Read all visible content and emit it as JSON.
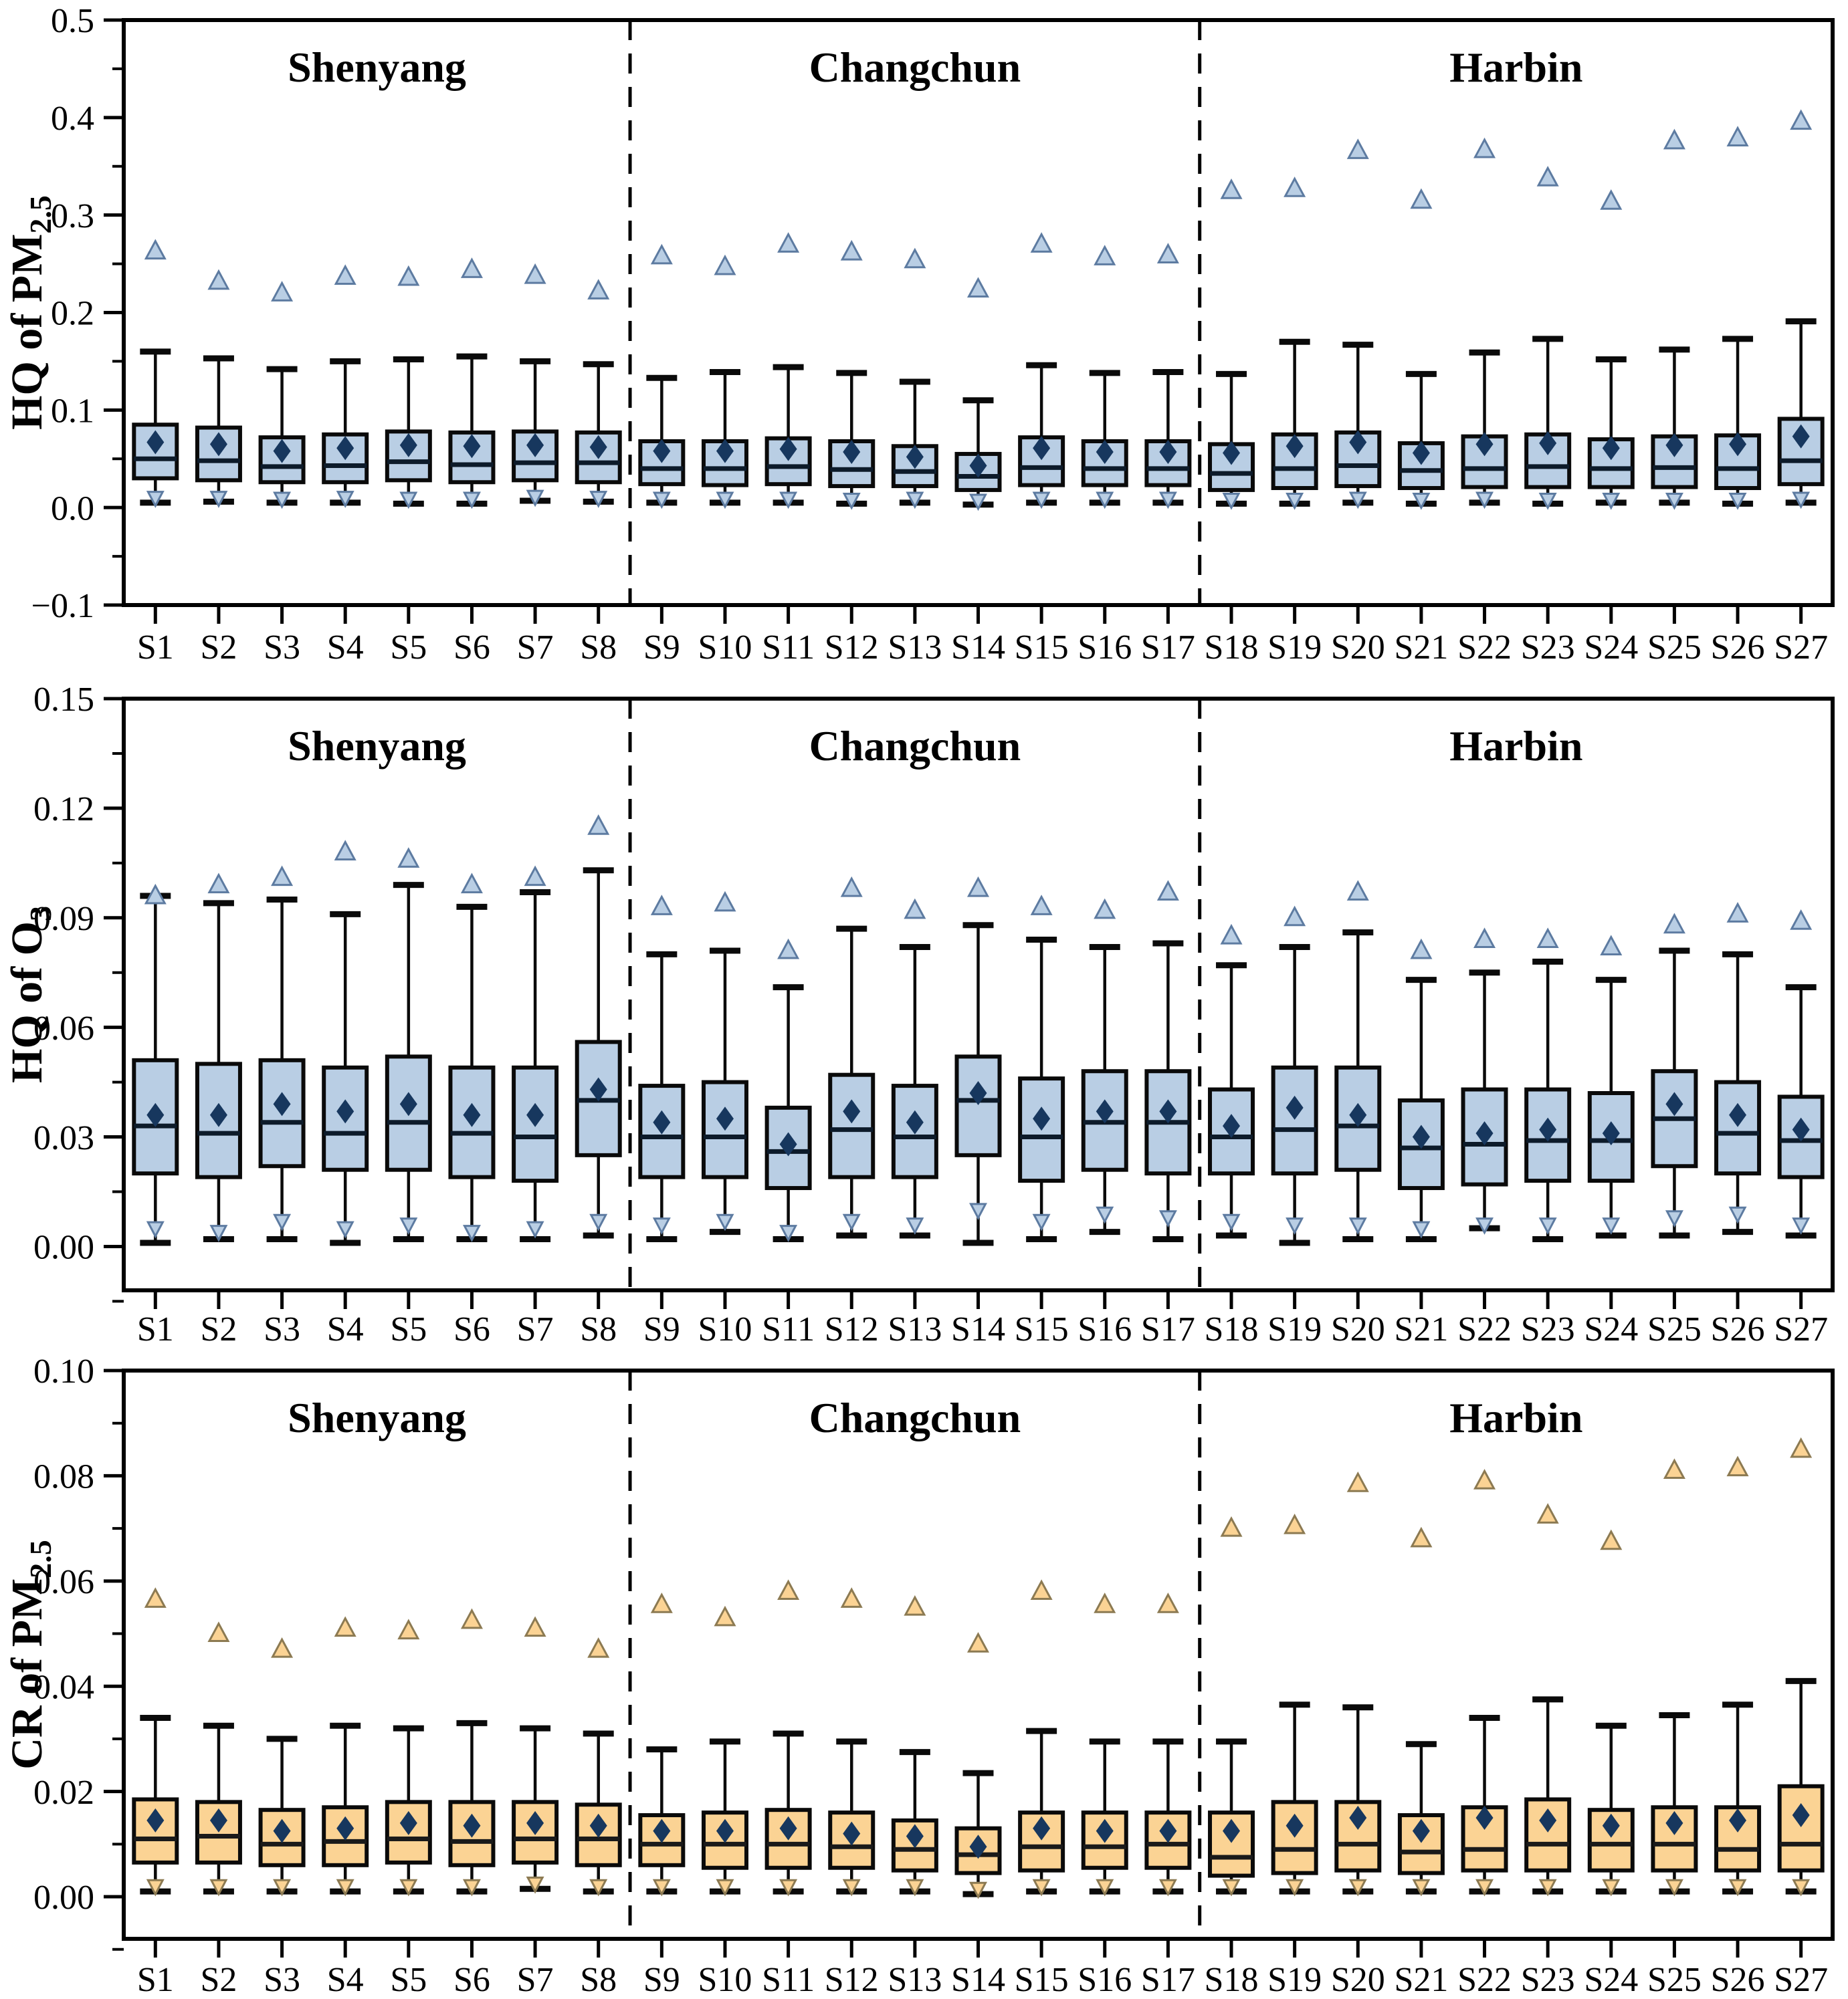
{
  "figure": {
    "background": "#ffffff",
    "site_count": 27,
    "cities": [
      "Shenyang",
      "Changchun",
      "Harbin"
    ]
  },
  "chart_data": [
    {
      "type": "box",
      "title": "",
      "ylabel_parts": [
        {
          "text": "HQ of PM",
          "sub": false
        },
        {
          "text": "2.5",
          "sub": true
        }
      ],
      "categories": [
        "S1",
        "S2",
        "S3",
        "S4",
        "S5",
        "S6",
        "S7",
        "S8",
        "S9",
        "S10",
        "S11",
        "S12",
        "S13",
        "S14",
        "S15",
        "S16",
        "S17",
        "S18",
        "S19",
        "S20",
        "S21",
        "S22",
        "S23",
        "S24",
        "S25",
        "S26",
        "S27"
      ],
      "regions": [
        {
          "label": "Shenyang",
          "span": [
            0,
            7
          ]
        },
        {
          "label": "Changchun",
          "span": [
            8,
            16
          ]
        },
        {
          "label": "Harbin",
          "span": [
            17,
            26
          ]
        }
      ],
      "separators_after_index": [
        7,
        16
      ],
      "ylim": [
        -0.1,
        0.5
      ],
      "yticks": [
        {
          "v": 0.5,
          "label": "0.5"
        },
        {
          "v": 0.4,
          "label": "0.4"
        },
        {
          "v": 0.3,
          "label": "0.3"
        },
        {
          "v": 0.2,
          "label": "0.2"
        },
        {
          "v": 0.1,
          "label": "0.1"
        },
        {
          "v": 0.0,
          "label": "0.0"
        },
        {
          "v": -0.1,
          "label": "−0.1"
        }
      ],
      "minor_step": 0.05,
      "grid": false,
      "legend": "none",
      "stats": {
        "whisker_low": [
          0.005,
          0.006,
          0.005,
          0.005,
          0.004,
          0.004,
          0.007,
          0.006,
          0.005,
          0.005,
          0.005,
          0.004,
          0.005,
          0.003,
          0.005,
          0.005,
          0.005,
          0.004,
          0.004,
          0.005,
          0.004,
          0.005,
          0.004,
          0.005,
          0.005,
          0.004,
          0.005
        ],
        "q1": [
          0.03,
          0.028,
          0.026,
          0.026,
          0.028,
          0.026,
          0.028,
          0.026,
          0.024,
          0.023,
          0.024,
          0.022,
          0.022,
          0.018,
          0.023,
          0.023,
          0.023,
          0.018,
          0.02,
          0.022,
          0.02,
          0.021,
          0.021,
          0.021,
          0.021,
          0.02,
          0.024
        ],
        "median": [
          0.05,
          0.048,
          0.042,
          0.043,
          0.047,
          0.044,
          0.046,
          0.046,
          0.04,
          0.04,
          0.042,
          0.039,
          0.037,
          0.032,
          0.041,
          0.04,
          0.04,
          0.035,
          0.04,
          0.043,
          0.038,
          0.04,
          0.042,
          0.04,
          0.041,
          0.04,
          0.048
        ],
        "q3": [
          0.085,
          0.082,
          0.072,
          0.075,
          0.078,
          0.077,
          0.078,
          0.077,
          0.068,
          0.068,
          0.071,
          0.068,
          0.063,
          0.055,
          0.072,
          0.068,
          0.068,
          0.065,
          0.075,
          0.077,
          0.066,
          0.073,
          0.075,
          0.07,
          0.073,
          0.074,
          0.091
        ],
        "whisker_high": [
          0.16,
          0.153,
          0.142,
          0.15,
          0.152,
          0.155,
          0.15,
          0.147,
          0.133,
          0.139,
          0.144,
          0.138,
          0.129,
          0.11,
          0.146,
          0.138,
          0.139,
          0.137,
          0.17,
          0.167,
          0.137,
          0.159,
          0.173,
          0.152,
          0.162,
          0.173,
          0.191
        ],
        "mean": [
          0.067,
          0.065,
          0.058,
          0.061,
          0.064,
          0.063,
          0.064,
          0.062,
          0.058,
          0.058,
          0.06,
          0.057,
          0.052,
          0.043,
          0.061,
          0.057,
          0.057,
          0.056,
          0.063,
          0.067,
          0.056,
          0.065,
          0.066,
          0.061,
          0.064,
          0.065,
          0.073
        ],
        "outlier_high": [
          0.263,
          0.232,
          0.22,
          0.237,
          0.236,
          0.244,
          0.238,
          0.222,
          0.258,
          0.247,
          0.27,
          0.262,
          0.254,
          0.224,
          0.27,
          0.257,
          0.259,
          0.325,
          0.327,
          0.366,
          0.315,
          0.367,
          0.338,
          0.314,
          0.376,
          0.379,
          0.396
        ],
        "outlier_low": [
          0.01,
          0.01,
          0.009,
          0.01,
          0.009,
          0.009,
          0.011,
          0.01,
          0.009,
          0.009,
          0.009,
          0.008,
          0.009,
          0.007,
          0.009,
          0.009,
          0.009,
          0.008,
          0.008,
          0.009,
          0.008,
          0.009,
          0.008,
          0.008,
          0.008,
          0.008,
          0.009
        ]
      },
      "colors": {
        "box_fill": "#b9cee4",
        "box_edge": "#0a0a0a",
        "median": "#0d1b2a",
        "mean": "#17375e",
        "whisker": "#0a0a0a",
        "outlier_fill": "#b9cee4",
        "outlier_edge": "#5d7ba1",
        "separator": "#000000"
      }
    },
    {
      "type": "box",
      "title": "",
      "ylabel_parts": [
        {
          "text": "HQ of O",
          "sub": false
        },
        {
          "text": "3",
          "sub": true
        }
      ],
      "categories": [
        "S1",
        "S2",
        "S3",
        "S4",
        "S5",
        "S6",
        "S7",
        "S8",
        "S9",
        "S10",
        "S11",
        "S12",
        "S13",
        "S14",
        "S15",
        "S16",
        "S17",
        "S18",
        "S19",
        "S20",
        "S21",
        "S22",
        "S23",
        "S24",
        "S25",
        "S26",
        "S27"
      ],
      "regions": [
        {
          "label": "Shenyang",
          "span": [
            0,
            7
          ]
        },
        {
          "label": "Changchun",
          "span": [
            8,
            16
          ]
        },
        {
          "label": "Harbin",
          "span": [
            17,
            26
          ]
        }
      ],
      "separators_after_index": [
        7,
        16
      ],
      "ylim": [
        -0.012,
        0.15
      ],
      "yticks": [
        {
          "v": 0.15,
          "label": "0.15"
        },
        {
          "v": 0.12,
          "label": "0.12"
        },
        {
          "v": 0.09,
          "label": "0.09"
        },
        {
          "v": 0.06,
          "label": "0.06"
        },
        {
          "v": 0.03,
          "label": "0.03"
        },
        {
          "v": 0.0,
          "label": "0.00"
        }
      ],
      "minor_step": 0.015,
      "grid": false,
      "legend": "none",
      "stats": {
        "whisker_low": [
          0.001,
          0.002,
          0.002,
          0.001,
          0.002,
          0.002,
          0.002,
          0.003,
          0.002,
          0.004,
          0.002,
          0.003,
          0.003,
          0.001,
          0.002,
          0.004,
          0.002,
          0.003,
          0.001,
          0.002,
          0.002,
          0.005,
          0.002,
          0.003,
          0.003,
          0.004,
          0.003
        ],
        "q1": [
          0.02,
          0.019,
          0.022,
          0.021,
          0.021,
          0.019,
          0.018,
          0.025,
          0.019,
          0.019,
          0.016,
          0.019,
          0.019,
          0.025,
          0.018,
          0.021,
          0.02,
          0.02,
          0.02,
          0.021,
          0.016,
          0.017,
          0.018,
          0.018,
          0.022,
          0.02,
          0.019
        ],
        "median": [
          0.033,
          0.031,
          0.034,
          0.031,
          0.034,
          0.031,
          0.03,
          0.04,
          0.03,
          0.03,
          0.026,
          0.032,
          0.03,
          0.04,
          0.03,
          0.034,
          0.034,
          0.03,
          0.032,
          0.033,
          0.027,
          0.028,
          0.029,
          0.029,
          0.035,
          0.031,
          0.029
        ],
        "q3": [
          0.051,
          0.05,
          0.051,
          0.049,
          0.052,
          0.049,
          0.049,
          0.056,
          0.044,
          0.045,
          0.038,
          0.047,
          0.044,
          0.052,
          0.046,
          0.048,
          0.048,
          0.043,
          0.049,
          0.049,
          0.04,
          0.043,
          0.043,
          0.042,
          0.048,
          0.045,
          0.041
        ],
        "whisker_high": [
          0.096,
          0.094,
          0.095,
          0.091,
          0.099,
          0.093,
          0.097,
          0.103,
          0.08,
          0.081,
          0.071,
          0.087,
          0.082,
          0.088,
          0.084,
          0.082,
          0.083,
          0.077,
          0.082,
          0.086,
          0.073,
          0.075,
          0.078,
          0.073,
          0.081,
          0.08,
          0.071
        ],
        "mean": [
          0.036,
          0.036,
          0.039,
          0.037,
          0.039,
          0.036,
          0.036,
          0.043,
          0.034,
          0.035,
          0.028,
          0.037,
          0.034,
          0.042,
          0.035,
          0.037,
          0.037,
          0.033,
          0.038,
          0.036,
          0.03,
          0.031,
          0.032,
          0.031,
          0.039,
          0.036,
          0.032
        ],
        "outlier_high": [
          0.096,
          0.099,
          0.101,
          0.108,
          0.106,
          0.099,
          0.101,
          0.115,
          0.093,
          0.094,
          0.081,
          0.098,
          0.092,
          0.098,
          0.093,
          0.092,
          0.097,
          0.085,
          0.09,
          0.097,
          0.081,
          0.084,
          0.084,
          0.082,
          0.088,
          0.091,
          0.089
        ],
        "outlier_low": [
          0.005,
          0.004,
          0.007,
          0.005,
          0.006,
          0.004,
          0.005,
          0.007,
          0.006,
          0.007,
          0.004,
          0.007,
          0.006,
          0.01,
          0.007,
          0.009,
          0.008,
          0.007,
          0.006,
          0.006,
          0.005,
          0.006,
          0.006,
          0.006,
          0.008,
          0.009,
          0.006
        ]
      },
      "colors": {
        "box_fill": "#b9cee4",
        "box_edge": "#0a0a0a",
        "median": "#0d1b2a",
        "mean": "#17375e",
        "whisker": "#0a0a0a",
        "outlier_fill": "#b9cee4",
        "outlier_edge": "#5d7ba1",
        "separator": "#000000"
      }
    },
    {
      "type": "box",
      "title": "",
      "ylabel_parts": [
        {
          "text": "CR of PM",
          "sub": false
        },
        {
          "text": "2.5",
          "sub": true
        }
      ],
      "categories": [
        "S1",
        "S2",
        "S3",
        "S4",
        "S5",
        "S6",
        "S7",
        "S8",
        "S9",
        "S10",
        "S11",
        "S12",
        "S13",
        "S14",
        "S15",
        "S16",
        "S17",
        "S18",
        "S19",
        "S20",
        "S21",
        "S22",
        "S23",
        "S24",
        "S25",
        "S26",
        "S27"
      ],
      "regions": [
        {
          "label": "Shenyang",
          "span": [
            0,
            7
          ]
        },
        {
          "label": "Changchun",
          "span": [
            8,
            16
          ]
        },
        {
          "label": "Harbin",
          "span": [
            17,
            26
          ]
        }
      ],
      "separators_after_index": [
        7,
        16
      ],
      "ylim": [
        -0.008,
        0.1
      ],
      "yticks": [
        {
          "v": 0.1,
          "label": "0.10"
        },
        {
          "v": 0.08,
          "label": "0.08"
        },
        {
          "v": 0.06,
          "label": "0.06"
        },
        {
          "v": 0.04,
          "label": "0.04"
        },
        {
          "v": 0.02,
          "label": "0.02"
        },
        {
          "v": 0.0,
          "label": "0.00"
        }
      ],
      "minor_step": 0.01,
      "grid": false,
      "legend": "none",
      "stats": {
        "whisker_low": [
          0.001,
          0.001,
          0.001,
          0.001,
          0.001,
          0.001,
          0.0015,
          0.001,
          0.001,
          0.001,
          0.001,
          0.001,
          0.001,
          0.0005,
          0.001,
          0.001,
          0.001,
          0.001,
          0.001,
          0.001,
          0.001,
          0.001,
          0.001,
          0.001,
          0.001,
          0.001,
          0.001
        ],
        "q1": [
          0.0065,
          0.0065,
          0.006,
          0.006,
          0.0065,
          0.006,
          0.0065,
          0.006,
          0.006,
          0.0055,
          0.0055,
          0.0055,
          0.005,
          0.0045,
          0.005,
          0.0055,
          0.0055,
          0.004,
          0.0045,
          0.005,
          0.0045,
          0.005,
          0.005,
          0.005,
          0.005,
          0.005,
          0.005
        ],
        "median": [
          0.011,
          0.0115,
          0.01,
          0.0105,
          0.011,
          0.0105,
          0.011,
          0.011,
          0.01,
          0.01,
          0.01,
          0.0095,
          0.009,
          0.008,
          0.0095,
          0.0095,
          0.01,
          0.0075,
          0.009,
          0.01,
          0.0085,
          0.009,
          0.01,
          0.01,
          0.01,
          0.009,
          0.01
        ],
        "q3": [
          0.0185,
          0.018,
          0.0165,
          0.017,
          0.018,
          0.018,
          0.018,
          0.0175,
          0.0155,
          0.016,
          0.0165,
          0.016,
          0.0145,
          0.013,
          0.016,
          0.016,
          0.016,
          0.016,
          0.018,
          0.018,
          0.0155,
          0.017,
          0.0185,
          0.0165,
          0.017,
          0.017,
          0.021
        ],
        "whisker_high": [
          0.034,
          0.0325,
          0.03,
          0.0325,
          0.032,
          0.033,
          0.032,
          0.031,
          0.028,
          0.0295,
          0.031,
          0.0295,
          0.0275,
          0.0235,
          0.0315,
          0.0295,
          0.0295,
          0.0295,
          0.0365,
          0.036,
          0.029,
          0.034,
          0.0375,
          0.0325,
          0.0345,
          0.0365,
          0.041
        ],
        "mean": [
          0.0145,
          0.0145,
          0.0125,
          0.013,
          0.014,
          0.0135,
          0.014,
          0.0135,
          0.0125,
          0.0125,
          0.013,
          0.012,
          0.0115,
          0.0095,
          0.013,
          0.0125,
          0.0125,
          0.0125,
          0.0135,
          0.015,
          0.0125,
          0.015,
          0.0145,
          0.0135,
          0.014,
          0.0145,
          0.0155
        ],
        "outlier_high": [
          0.0565,
          0.05,
          0.047,
          0.051,
          0.0505,
          0.0525,
          0.051,
          0.047,
          0.0555,
          0.053,
          0.058,
          0.0565,
          0.055,
          0.048,
          0.058,
          0.0555,
          0.0555,
          0.07,
          0.0705,
          0.0785,
          0.068,
          0.079,
          0.0725,
          0.0675,
          0.081,
          0.0815,
          0.085
        ],
        "outlier_low": [
          0.002,
          0.002,
          0.002,
          0.002,
          0.002,
          0.002,
          0.0025,
          0.002,
          0.002,
          0.002,
          0.002,
          0.002,
          0.002,
          0.0015,
          0.002,
          0.002,
          0.002,
          0.002,
          0.002,
          0.002,
          0.002,
          0.002,
          0.002,
          0.002,
          0.002,
          0.002,
          0.002
        ]
      },
      "colors": {
        "box_fill": "#fbd394",
        "box_edge": "#0a0a0a",
        "median": "#1a1a1a",
        "mean": "#17375e",
        "whisker": "#0a0a0a",
        "outlier_fill": "#fbd394",
        "outlier_edge": "#8c7a52",
        "separator": "#000000"
      }
    }
  ]
}
